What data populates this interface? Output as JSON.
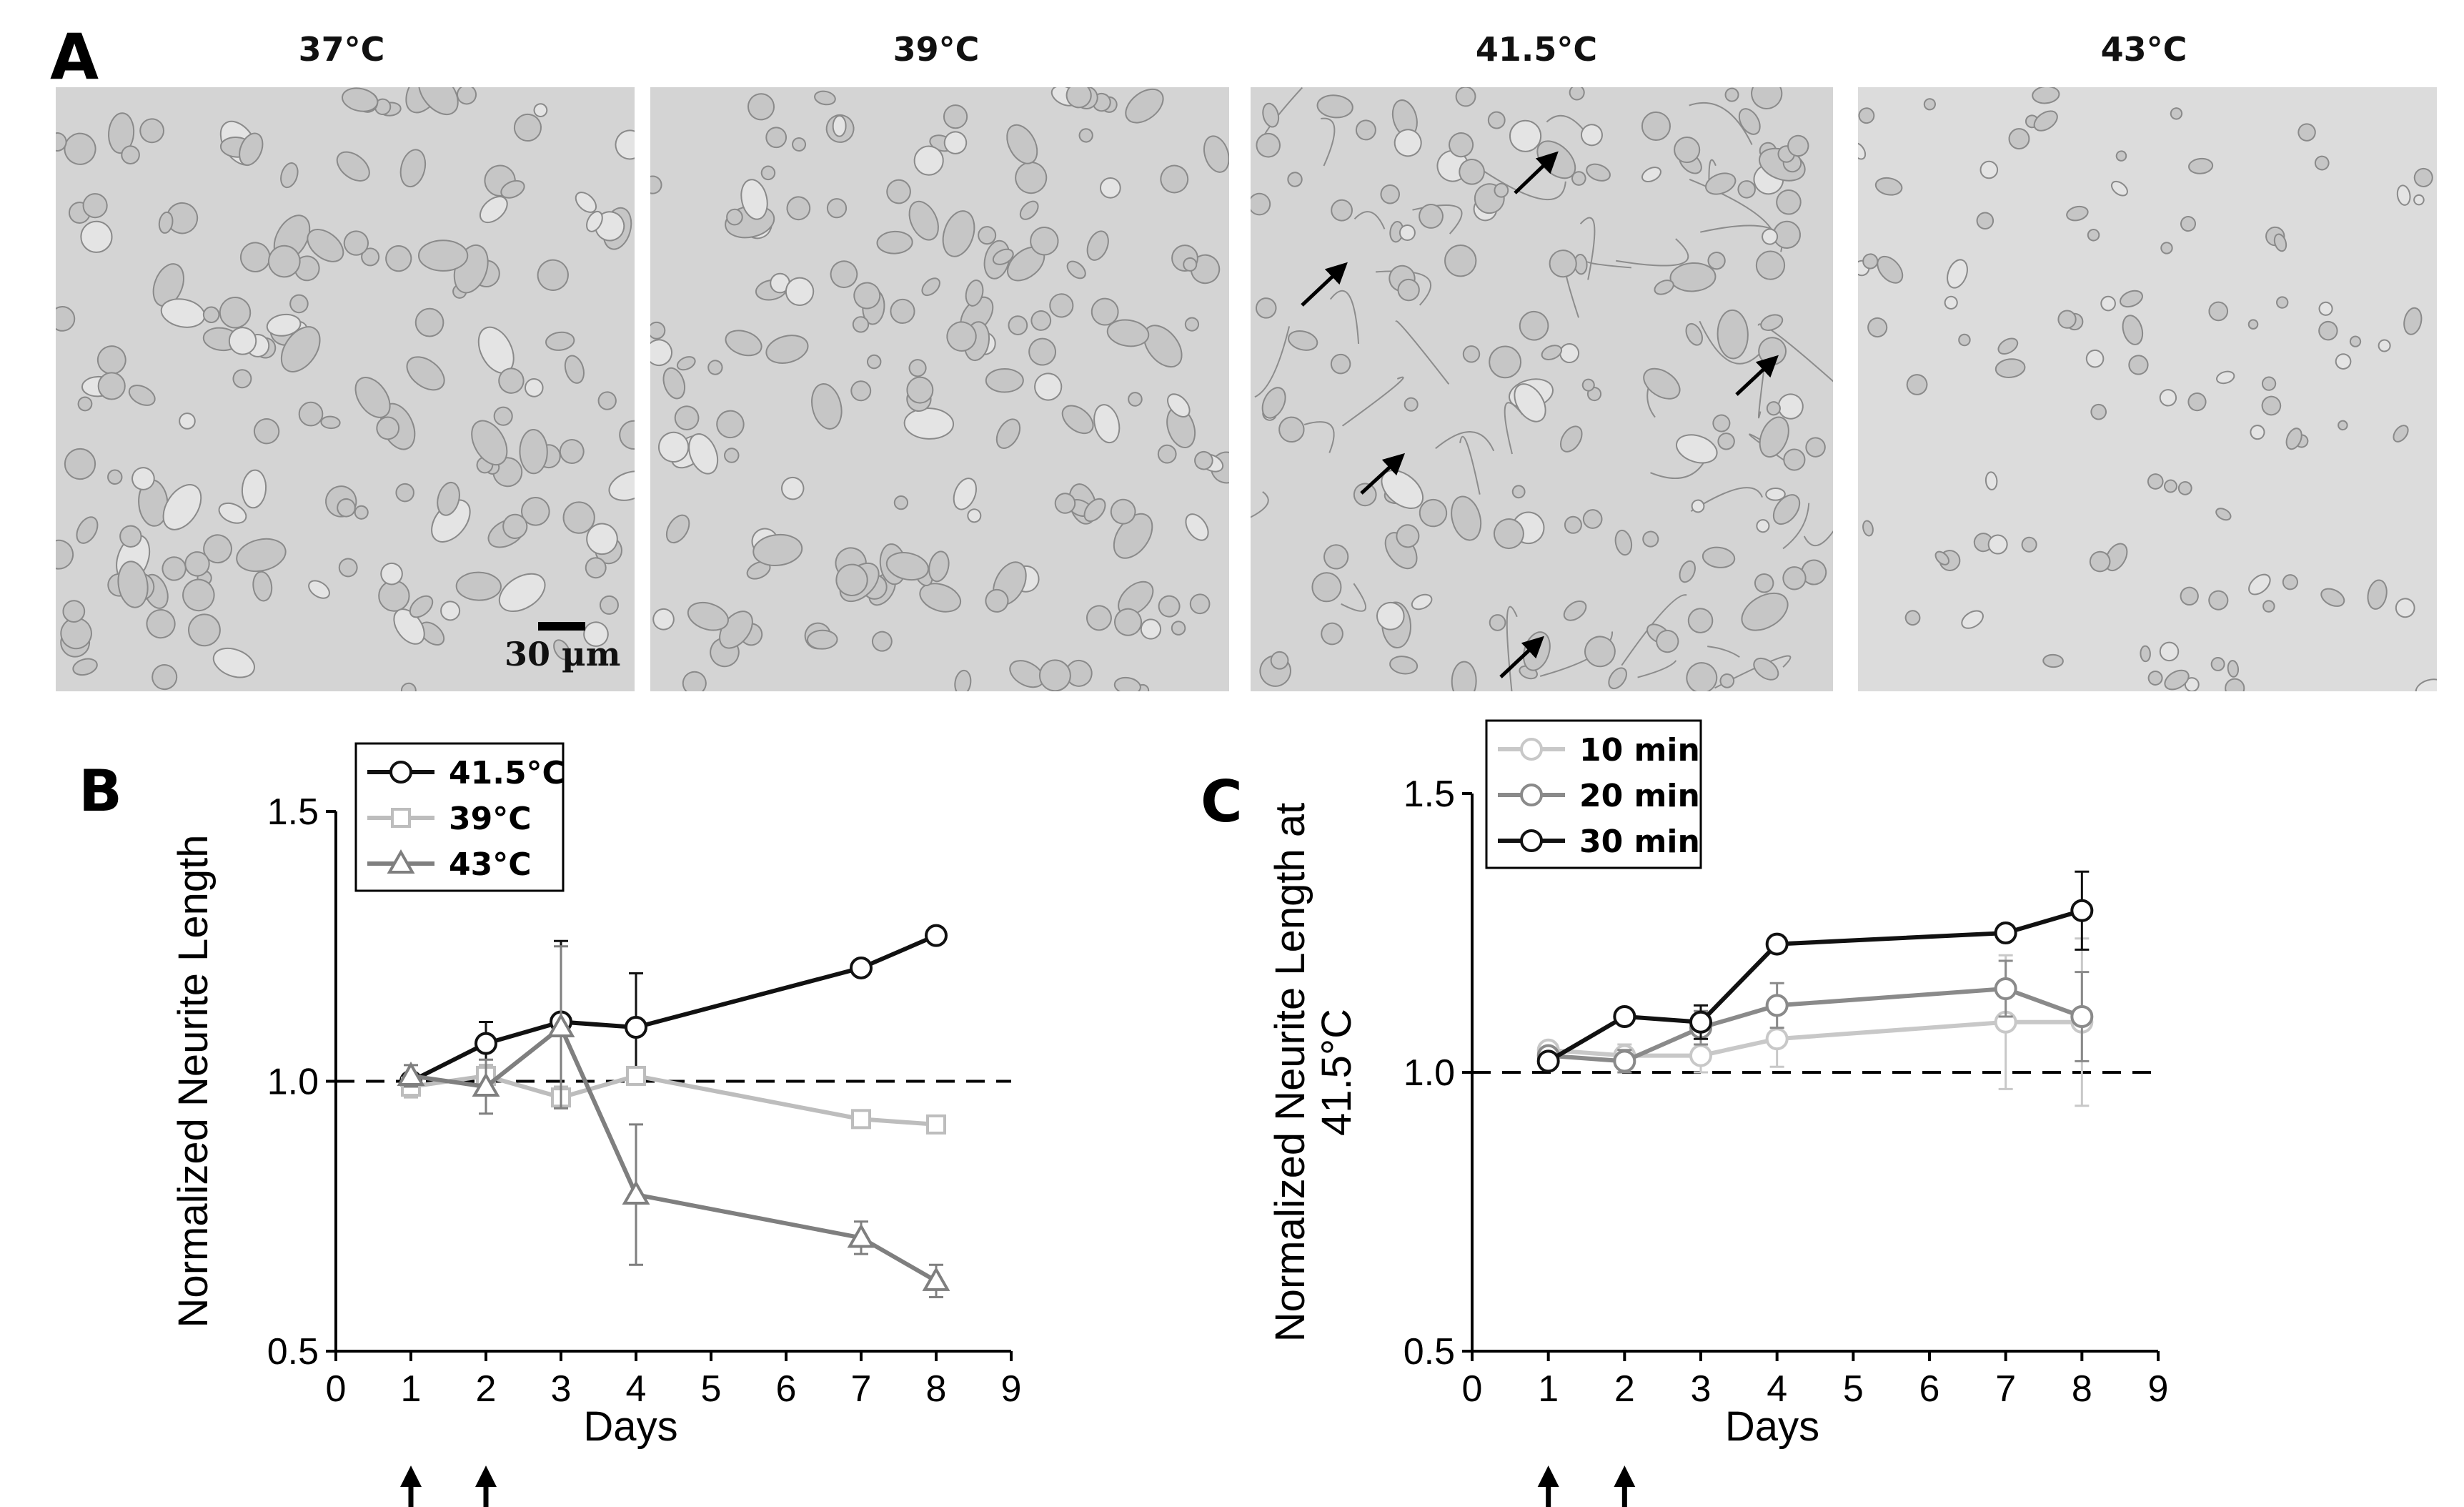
{
  "panels": {
    "a_label": "A",
    "b_label": "B",
    "c_label": "C",
    "micrographs": [
      {
        "title": "37°C"
      },
      {
        "title": "39°C"
      },
      {
        "title": "41.5°C"
      },
      {
        "title": "43°C"
      }
    ],
    "scale_bar_label": "30 µm"
  },
  "chart_data": [
    {
      "type": "line",
      "xlabel": "Days",
      "ylabel": "Normalized Neurite Length",
      "xlim": [
        0,
        9
      ],
      "ylim": [
        0.5,
        1.5
      ],
      "xticks": [
        0,
        1,
        2,
        3,
        4,
        5,
        6,
        7,
        8,
        9
      ],
      "yticks": [
        "0.5",
        "1.0",
        "1.5"
      ],
      "reference_line": 1.0,
      "arrows_at_days": [
        1,
        2
      ],
      "legend_position": "top-left",
      "series": [
        {
          "name": "41.5°C",
          "marker": "circle",
          "color": "#111111",
          "x": [
            1,
            2,
            3,
            4,
            7,
            8
          ],
          "y": [
            1.0,
            1.07,
            1.11,
            1.1,
            1.21,
            1.27
          ],
          "err": [
            0.01,
            0.04,
            0.15,
            0.1,
            0.01,
            0.01
          ]
        },
        {
          "name": "39°C",
          "marker": "square",
          "color": "#bdbdbd",
          "x": [
            1,
            2,
            3,
            4,
            7,
            8
          ],
          "y": [
            0.99,
            1.01,
            0.97,
            1.01,
            0.93,
            0.92
          ],
          "err": [
            0.02,
            0.02,
            0.02,
            0.01,
            0.01,
            0.01
          ]
        },
        {
          "name": "43°C",
          "marker": "triangle",
          "color": "#7f7f7f",
          "x": [
            1,
            2,
            3,
            4,
            7,
            8
          ],
          "y": [
            1.01,
            0.99,
            1.1,
            0.79,
            0.71,
            0.63
          ],
          "err": [
            0.02,
            0.05,
            0.15,
            0.13,
            0.03,
            0.03
          ]
        }
      ]
    },
    {
      "type": "line",
      "xlabel": "Days",
      "ylabel_line1": "Normalized Neurite Length at",
      "ylabel_line2": "41.5°C",
      "xlim": [
        0,
        9
      ],
      "ylim": [
        0.5,
        1.5
      ],
      "xticks": [
        0,
        1,
        2,
        3,
        4,
        5,
        6,
        7,
        8,
        9
      ],
      "yticks": [
        "0.5",
        "1.0",
        "1.5"
      ],
      "reference_line": 1.0,
      "arrows_at_days": [
        1,
        2
      ],
      "legend_position": "top-left",
      "series": [
        {
          "name": "10 min",
          "marker": "circle",
          "color": "#c8c8c8",
          "x": [
            1,
            2,
            3,
            4,
            7,
            8
          ],
          "y": [
            1.04,
            1.03,
            1.03,
            1.06,
            1.09,
            1.09
          ],
          "err": [
            0.01,
            0.02,
            0.03,
            0.05,
            0.12,
            0.15
          ]
        },
        {
          "name": "20 min",
          "marker": "circle",
          "color": "#8a8a8a",
          "x": [
            1,
            2,
            3,
            4,
            7,
            8
          ],
          "y": [
            1.03,
            1.02,
            1.08,
            1.12,
            1.15,
            1.1
          ],
          "err": [
            0.01,
            0.02,
            0.03,
            0.04,
            0.05,
            0.08
          ]
        },
        {
          "name": "30 min",
          "marker": "circle",
          "color": "#111111",
          "x": [
            1,
            2,
            3,
            4,
            7,
            8
          ],
          "y": [
            1.02,
            1.1,
            1.09,
            1.23,
            1.25,
            1.29
          ],
          "err": [
            0.01,
            0.01,
            0.03,
            0.01,
            0.01,
            0.07
          ]
        }
      ]
    }
  ]
}
